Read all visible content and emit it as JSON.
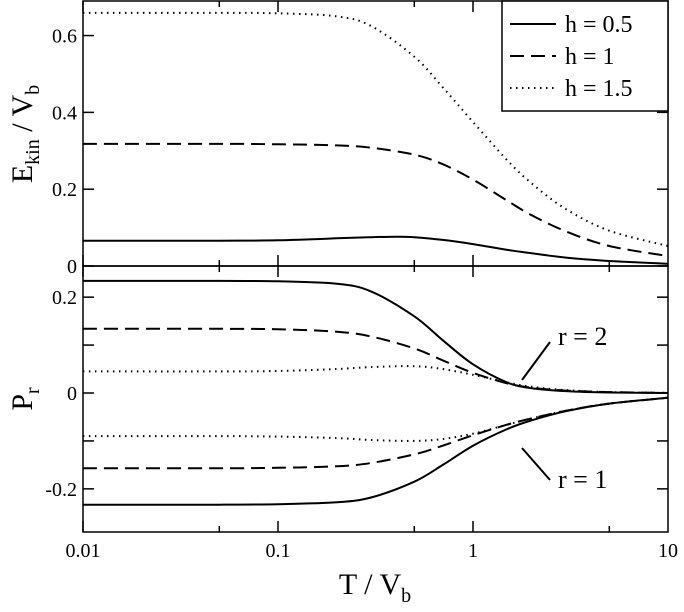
{
  "chart_data": [
    {
      "type": "line",
      "panel": "top",
      "ylabel_main": "E",
      "ylabel_sub": "kin",
      "ylabel_mid": " / V",
      "ylabel_sub2": "b",
      "xscale": "log",
      "xlim": [
        0.01,
        10
      ],
      "ylim": [
        0,
        0.69
      ],
      "yticks": [
        0,
        0.2,
        0.4,
        0.6
      ],
      "ytick_labels": [
        "0",
        "0.2",
        "0.4",
        "0.6"
      ],
      "legend_placement": "top-right",
      "series": [
        {
          "name": "h = 0.5",
          "style": "solid",
          "x": [
            0.01,
            0.05,
            0.1,
            0.2,
            0.3,
            0.4,
            0.5,
            0.7,
            1,
            1.5,
            2,
            3,
            5,
            10
          ],
          "y": [
            0.066,
            0.066,
            0.067,
            0.072,
            0.075,
            0.076,
            0.075,
            0.068,
            0.057,
            0.042,
            0.033,
            0.022,
            0.013,
            0.006
          ]
        },
        {
          "name": "h = 1",
          "style": "dashed",
          "x": [
            0.01,
            0.05,
            0.1,
            0.2,
            0.3,
            0.5,
            0.7,
            1,
            1.5,
            2,
            3,
            5,
            10
          ],
          "y": [
            0.318,
            0.318,
            0.317,
            0.314,
            0.308,
            0.29,
            0.265,
            0.225,
            0.17,
            0.132,
            0.09,
            0.052,
            0.026
          ]
        },
        {
          "name": "h = 1.5",
          "style": "dotted",
          "x": [
            0.01,
            0.05,
            0.1,
            0.2,
            0.3,
            0.5,
            0.7,
            1,
            1.5,
            2,
            3,
            5,
            10
          ],
          "y": [
            0.659,
            0.659,
            0.658,
            0.65,
            0.625,
            0.545,
            0.465,
            0.375,
            0.275,
            0.215,
            0.148,
            0.092,
            0.052
          ]
        }
      ]
    },
    {
      "type": "line",
      "panel": "bottom",
      "ylabel_main": "P",
      "ylabel_sub": "r",
      "xlabel_main": "T / V",
      "xlabel_sub": "b",
      "xscale": "log",
      "xlim": [
        0.01,
        10
      ],
      "ylim": [
        -0.29,
        0.265
      ],
      "xticks": [
        0.01,
        0.1,
        1,
        10
      ],
      "xtick_labels": [
        "0.01",
        "0.1",
        "1",
        "10"
      ],
      "yticks": [
        -0.2,
        -0.1,
        0,
        0.1,
        0.2
      ],
      "ytick_labels": [
        "-0.2",
        "",
        "0",
        "",
        "0.2"
      ],
      "annotations": [
        "r = 2",
        "r = 1"
      ],
      "series": [
        {
          "name": "h = 0.5",
          "group": "r = 2",
          "style": "solid",
          "x": [
            0.01,
            0.05,
            0.1,
            0.2,
            0.3,
            0.5,
            0.7,
            1,
            1.5,
            2,
            3,
            5,
            10
          ],
          "y": [
            0.234,
            0.234,
            0.233,
            0.228,
            0.212,
            0.16,
            0.11,
            0.06,
            0.022,
            0.01,
            0.004,
            0.001,
            0.0
          ]
        },
        {
          "name": "h = 1",
          "group": "r = 2",
          "style": "dashed",
          "x": [
            0.01,
            0.05,
            0.1,
            0.2,
            0.3,
            0.5,
            0.7,
            1,
            1.5,
            2,
            3,
            5,
            10
          ],
          "y": [
            0.134,
            0.134,
            0.133,
            0.128,
            0.118,
            0.093,
            0.068,
            0.042,
            0.02,
            0.011,
            0.005,
            0.002,
            0.0
          ]
        },
        {
          "name": "h = 1.5",
          "group": "r = 2",
          "style": "dotted",
          "x": [
            0.01,
            0.05,
            0.1,
            0.2,
            0.3,
            0.5,
            0.7,
            1,
            1.5,
            2,
            3,
            5,
            10
          ],
          "y": [
            0.045,
            0.045,
            0.046,
            0.05,
            0.054,
            0.056,
            0.05,
            0.038,
            0.022,
            0.013,
            0.006,
            0.002,
            0.0
          ]
        },
        {
          "name": "h = 0.5",
          "group": "r = 1",
          "style": "solid",
          "x": [
            0.01,
            0.05,
            0.1,
            0.2,
            0.3,
            0.5,
            0.7,
            1,
            1.5,
            2,
            3,
            5,
            10
          ],
          "y": [
            -0.233,
            -0.233,
            -0.232,
            -0.228,
            -0.218,
            -0.185,
            -0.15,
            -0.11,
            -0.075,
            -0.057,
            -0.038,
            -0.022,
            -0.01
          ]
        },
        {
          "name": "h = 1",
          "group": "r = 1",
          "style": "dashed",
          "x": [
            0.01,
            0.05,
            0.1,
            0.2,
            0.3,
            0.5,
            0.7,
            1,
            1.5,
            2,
            3,
            5,
            10
          ],
          "y": [
            -0.157,
            -0.157,
            -0.156,
            -0.153,
            -0.146,
            -0.128,
            -0.11,
            -0.088,
            -0.066,
            -0.053,
            -0.037,
            -0.022,
            -0.01
          ]
        },
        {
          "name": "h = 1.5",
          "group": "r = 1",
          "style": "dotted",
          "x": [
            0.01,
            0.05,
            0.1,
            0.2,
            0.3,
            0.5,
            0.7,
            1,
            1.5,
            2,
            3,
            5,
            10
          ],
          "y": [
            -0.09,
            -0.09,
            -0.091,
            -0.094,
            -0.098,
            -0.1,
            -0.096,
            -0.085,
            -0.066,
            -0.053,
            -0.037,
            -0.022,
            -0.01
          ]
        }
      ]
    }
  ]
}
